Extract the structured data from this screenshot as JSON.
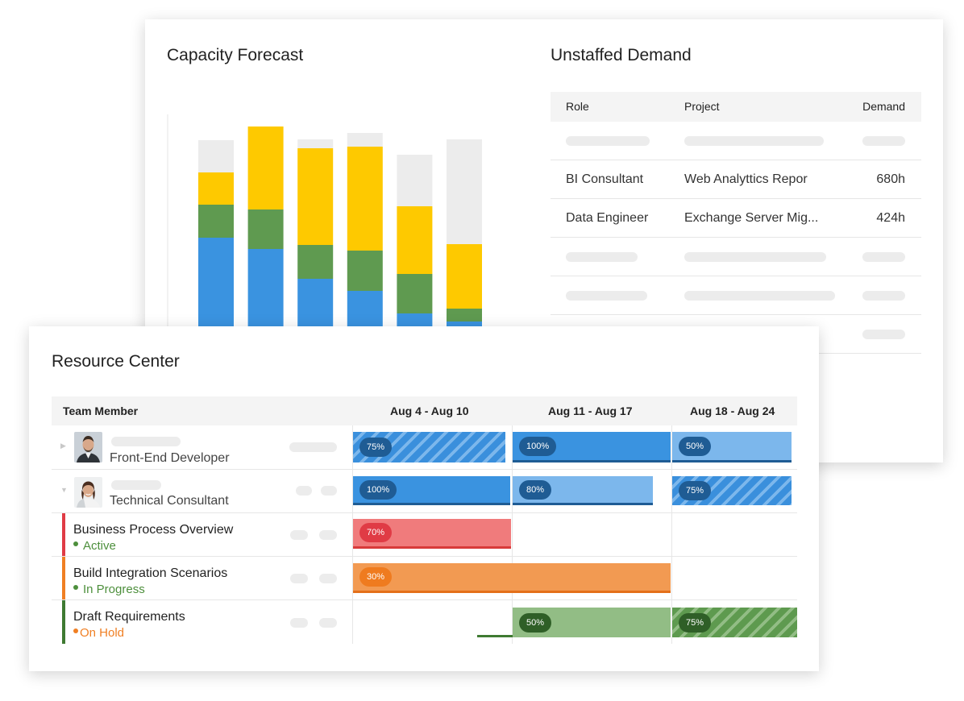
{
  "capacity_forecast": {
    "title": "Capacity Forecast",
    "colors": {
      "blue": "#3a93e0",
      "green": "#5f9a50",
      "yellow": "#fec900",
      "grey": "#ececec"
    },
    "chart_data": {
      "type": "bar",
      "stacked": true,
      "categories": [
        "",
        "",
        "",
        "",
        "",
        ""
      ],
      "series": [
        {
          "color": "#3a93e0",
          "values": [
            112,
            98,
            61,
            46,
            18,
            8
          ]
        },
        {
          "color": "#5f9a50",
          "values": [
            41,
            49,
            42,
            50,
            49,
            16
          ]
        },
        {
          "color": "#fec900",
          "values": [
            40,
            103,
            120,
            129,
            84,
            80
          ]
        },
        {
          "color": "#ececec",
          "values": [
            40,
            0,
            11,
            17,
            64,
            130
          ]
        }
      ],
      "ylim": [
        0,
        265
      ],
      "grid": false
    }
  },
  "unstaffed_demand": {
    "title": "Unstaffed Demand",
    "headers": {
      "role": "Role",
      "project": "Project",
      "demand": "Demand"
    },
    "rows": [
      {
        "role": "BI Consultant",
        "project": "Web Analyttics Repor",
        "demand": "680h"
      },
      {
        "role": "Data Engineer",
        "project": "Exchange Server Mig...",
        "demand": "424h"
      }
    ]
  },
  "resource_center": {
    "title": "Resource Center",
    "headers": {
      "member": "Team Member",
      "week1": "Aug 4 - Aug 10",
      "week2": "Aug 11 - Aug 17",
      "week3": "Aug 18 - Aug 24"
    },
    "people": [
      {
        "role": "Front-End Developer",
        "allocations": [
          "75%",
          "100%",
          "50%"
        ]
      },
      {
        "role": "Technical Consultant",
        "allocations": [
          "100%",
          "80%",
          "75%"
        ]
      }
    ],
    "tasks": [
      {
        "name": "Business Process Overview",
        "status": "Active",
        "status_color": "#4d8f3c",
        "bar_color": "#e03b45",
        "allocations": [
          "70%"
        ]
      },
      {
        "name": "Build Integration Scenarios",
        "status": "In Progress",
        "status_color": "#4d8f3c",
        "bar_color": "#f07f23",
        "allocations": [
          "30%"
        ]
      },
      {
        "name": "Draft Requirements",
        "status": "On Hold",
        "status_color": "#f07f23",
        "bar_color": "#3f7a32",
        "allocations": [
          "50%",
          "75%"
        ]
      }
    ]
  }
}
